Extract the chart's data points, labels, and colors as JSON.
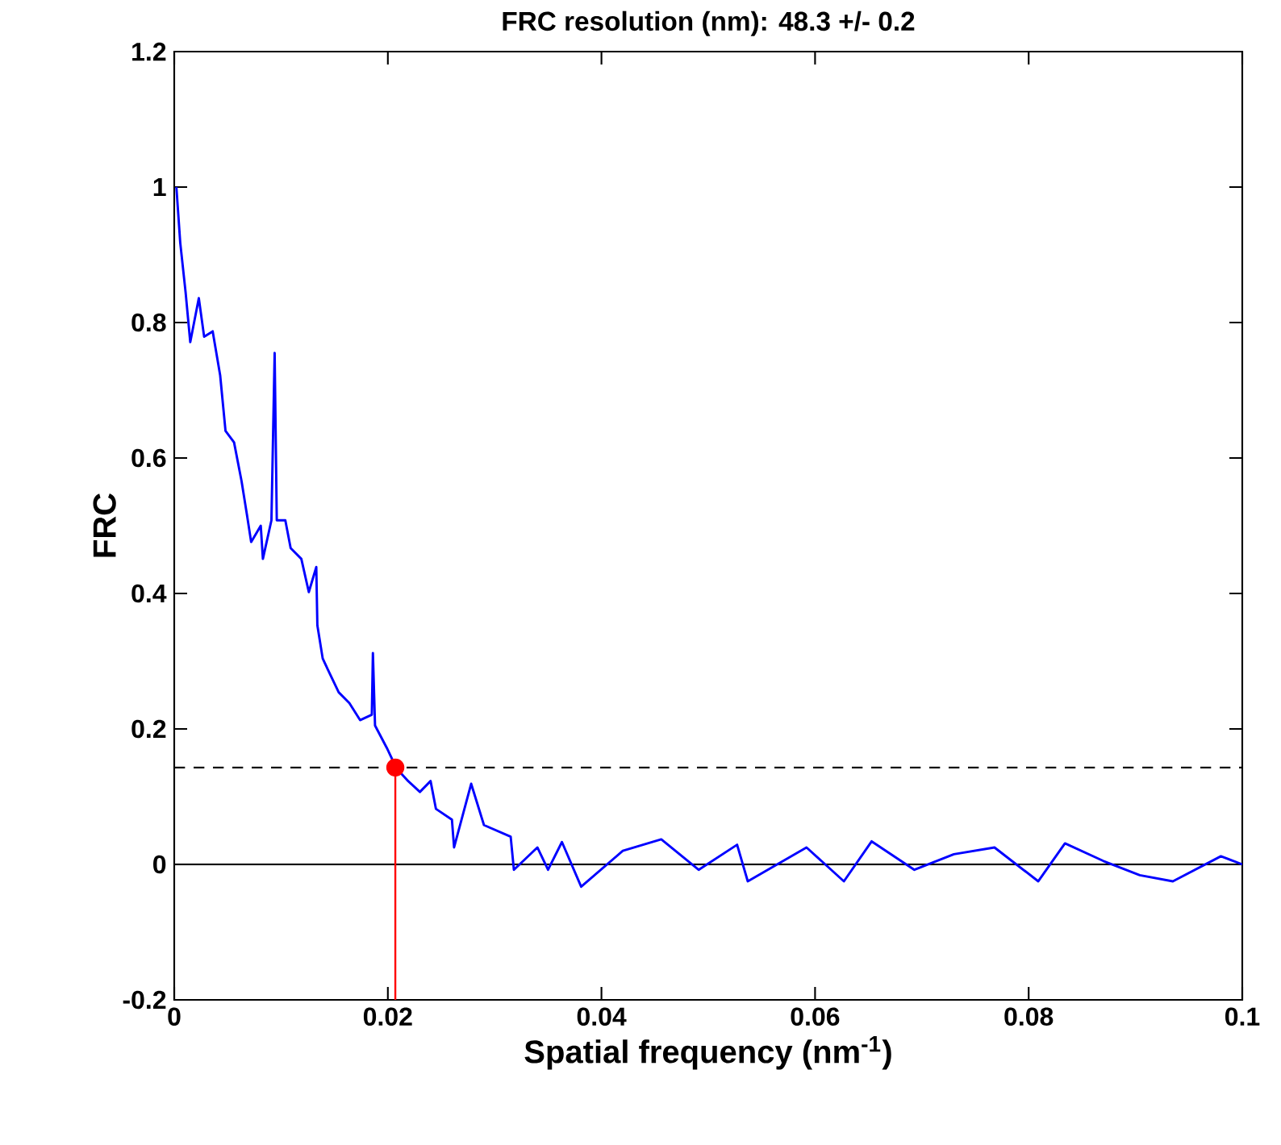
{
  "chart_data": {
    "type": "line",
    "title": "FRC resolution (nm): 48.3 +/- 0.2",
    "xlabel": "Spatial frequency (nm$^{-1}$)",
    "ylabel": "FRC",
    "xlim": [
      0,
      0.1
    ],
    "ylim": [
      -0.2,
      1.2
    ],
    "xticks": [
      0,
      0.02,
      0.04,
      0.06,
      0.08,
      0.1
    ],
    "yticks": [
      -0.2,
      0,
      0.2,
      0.4,
      0.6,
      0.8,
      1,
      1.2
    ],
    "grid": false,
    "series": [
      {
        "color": "#0000ff",
        "marker": "none",
        "x": [
          0.0002,
          0.00056,
          0.00106,
          0.0015,
          0.0023,
          0.0028,
          0.0036,
          0.0043,
          0.0048,
          0.0056,
          0.0063,
          0.0068,
          0.0072,
          0.0081,
          0.0083,
          0.0091,
          0.0094,
          0.0096,
          0.0104,
          0.0109,
          0.0119,
          0.0126,
          0.0133,
          0.0134,
          0.0139,
          0.0144,
          0.0154,
          0.0164,
          0.0174,
          0.0185,
          0.0186,
          0.0188,
          0.0199,
          0.0208,
          0.0219,
          0.023,
          0.024,
          0.0245,
          0.026,
          0.0262,
          0.0278,
          0.029,
          0.0315,
          0.0318,
          0.034,
          0.035,
          0.0363,
          0.0381,
          0.042,
          0.0456,
          0.0491,
          0.0527,
          0.0537,
          0.0592,
          0.0627,
          0.0653,
          0.0693,
          0.073,
          0.0768,
          0.0809,
          0.0834,
          0.087,
          0.0904,
          0.0935,
          0.098,
          0.1
        ],
        "values": [
          1.0,
          0.918,
          0.845,
          0.771,
          0.836,
          0.779,
          0.787,
          0.722,
          0.64,
          0.623,
          0.566,
          0.517,
          0.476,
          0.5,
          0.451,
          0.508,
          0.755,
          0.508,
          0.508,
          0.467,
          0.451,
          0.402,
          0.439,
          0.353,
          0.304,
          0.287,
          0.254,
          0.238,
          0.213,
          0.221,
          0.312,
          0.205,
          0.172,
          0.142,
          0.123,
          0.107,
          0.123,
          0.082,
          0.066,
          0.025,
          0.119,
          0.058,
          0.041,
          -0.008,
          0.025,
          -0.008,
          0.033,
          -0.033,
          0.02,
          0.037,
          -0.008,
          0.029,
          -0.025,
          0.025,
          -0.025,
          0.034,
          -0.008,
          0.015,
          0.025,
          -0.025,
          0.031,
          0.005,
          -0.016,
          -0.025,
          0.012,
          0.0
        ]
      },
      {
        "type": "scatter",
        "color": "#ff0000",
        "marker": "circle",
        "x": [
          0.0207
        ],
        "values": [
          0.143
        ]
      }
    ],
    "ref_lines": [
      {
        "axis": "y",
        "value": 0,
        "color": "#000000",
        "line_style": "solid"
      },
      {
        "axis": "y",
        "value": 0.143,
        "color": "#000000",
        "line_style": "dashed"
      },
      {
        "axis": "x",
        "value": 0.0207,
        "color": "#ff0000",
        "line_style": "solid"
      }
    ]
  }
}
